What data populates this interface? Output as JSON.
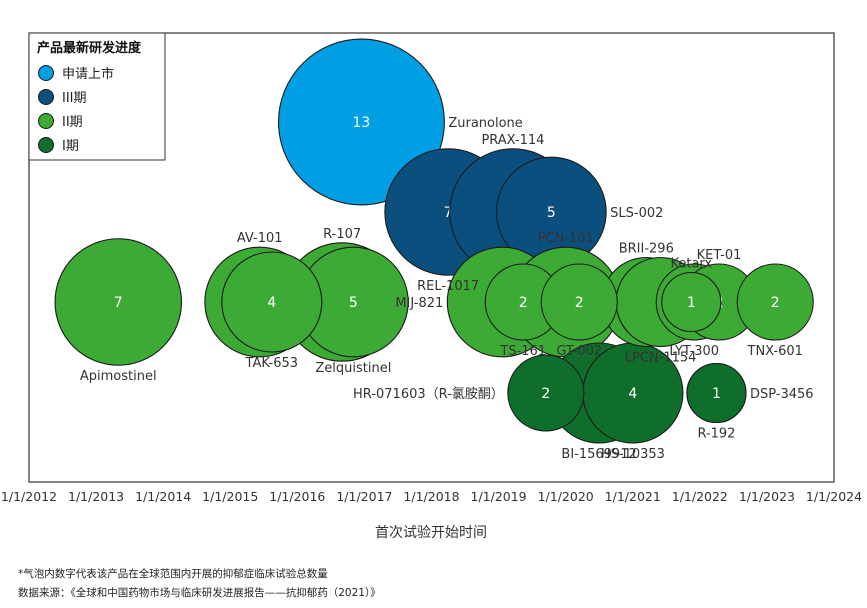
{
  "chart_data": {
    "type": "bubble",
    "title": "",
    "xlabel": "首次试验开始时间",
    "ylabel": "",
    "xlim": [
      "2012-01-01",
      "2024-01-01"
    ],
    "x_ticks": [
      "1/1/2012",
      "1/1/2013",
      "1/1/2014",
      "1/1/2015",
      "1/1/2016",
      "1/1/2017",
      "1/1/2018",
      "1/1/2019",
      "1/1/2020",
      "1/1/2021",
      "1/1/2022",
      "1/1/2023",
      "1/1/2024"
    ],
    "grid": false,
    "legend_title": "产品最新研发进度",
    "legend_position": "top-left",
    "phases": [
      {
        "key": "nda",
        "label": "申请上市",
        "color": "#009fe3"
      },
      {
        "key": "p3",
        "label": "III期",
        "color": "#0a4f7e"
      },
      {
        "key": "p2",
        "label": "II期",
        "color": "#3caa35"
      },
      {
        "key": "p1",
        "label": "I期",
        "color": "#0f6e2c"
      }
    ],
    "rows": 3,
    "bubbles": [
      {
        "name": "Zuranolone",
        "date": "2016-12-15",
        "row": 0,
        "count": 13,
        "phase": "nda",
        "label_pos": "right"
      },
      {
        "name": "REL-1017",
        "date": "2018-04-01",
        "row": 1,
        "count": 7,
        "phase": "p3",
        "label_pos": "bottom"
      },
      {
        "name": "PRAX-114",
        "date": "2019-03-20",
        "row": 1,
        "count": 7,
        "phase": "p3",
        "label_pos": "top"
      },
      {
        "name": "SLS-002",
        "date": "2019-10-15",
        "row": 1,
        "count": 5,
        "phase": "p3",
        "label_pos": "right"
      },
      {
        "name": "Apimostinel",
        "date": "2013-05-01",
        "row": 2,
        "count": 7,
        "phase": "p2",
        "label_pos": "bottom"
      },
      {
        "name": "AV-101",
        "date": "2015-06-10",
        "row": 2,
        "count": 5,
        "phase": "p2",
        "label_pos": "top"
      },
      {
        "name": "TAK-653",
        "date": "2015-08-15",
        "row": 2,
        "count": 4,
        "phase": "p2",
        "label_pos": "bottom"
      },
      {
        "name": "R-107",
        "date": "2016-09-01",
        "row": 2,
        "count": 6,
        "phase": "p2",
        "label_pos": "top"
      },
      {
        "name": "Zelquistinel",
        "date": "2016-11-01",
        "row": 2,
        "count": 5,
        "phase": "p2",
        "label_pos": "bottom"
      },
      {
        "name": "MIJ-821",
        "date": "2019-01-20",
        "row": 2,
        "count": 5,
        "phase": "p2",
        "label_pos": "left"
      },
      {
        "name": "TS-161",
        "date": "2019-05-15",
        "row": 2,
        "count": 2,
        "phase": "p2",
        "label_pos": "bottom"
      },
      {
        "name": "PCN-101",
        "date": "2020-01-01",
        "row": 2,
        "count": 5,
        "phase": "p2",
        "label_pos": "top"
      },
      {
        "name": "GT-002",
        "date": "2020-03-15",
        "row": 2,
        "count": 2,
        "phase": "p2",
        "label_pos": "bottom"
      },
      {
        "name": "BRII-296",
        "date": "2021-03-15",
        "row": 2,
        "count": 3,
        "phase": "p2",
        "label_pos": "top"
      },
      {
        "name": "LPCN-1154",
        "date": "2021-06-01",
        "row": 2,
        "count": 3,
        "phase": "p2",
        "label_pos": "bottom"
      },
      {
        "name": "Ketarx",
        "date": "2021-11-15",
        "row": 2,
        "count": 1,
        "phase": "p2",
        "label_pos": "top"
      },
      {
        "name": "LYT-300",
        "date": "2021-12-01",
        "row": 2,
        "count": 2,
        "phase": "p2",
        "label_pos": "bottom"
      },
      {
        "name": "KET-01",
        "date": "2022-04-15",
        "row": 2,
        "count": 2,
        "phase": "p2",
        "label_pos": "top"
      },
      {
        "name": "TNX-601",
        "date": "2023-02-15",
        "row": 2,
        "count": 2,
        "phase": "p2",
        "label_pos": "bottom"
      },
      {
        "name": "HR-071603（R-氯胺酮）",
        "date": "2019-09-15",
        "row": 3,
        "count": 2,
        "phase": "p1",
        "label_pos": "left"
      },
      {
        "name": "BI-1569912",
        "date": "2020-07-01",
        "row": 3,
        "count": 4,
        "phase": "p1",
        "label_pos": "bottom"
      },
      {
        "name": "HS-10353",
        "date": "2021-01-01",
        "row": 3,
        "count": 4,
        "phase": "p1",
        "label_pos": "bottom"
      },
      {
        "name": "DSP-3456",
        "date": "2022-04-01",
        "row": 3,
        "count": 1,
        "phase": "p1",
        "label_pos": "right"
      },
      {
        "name": "R-192",
        "date": "2022-04-01",
        "row": 3,
        "count": 1,
        "phase": "p1",
        "label_pos": "bottom"
      }
    ],
    "annotations": [
      "*气泡内数字代表该产品在全球范围内开展的抑郁症临床试验总数量",
      "数据来源：《全球和中国药物市场与临床研发进展报告——抗抑郁药（2021）》"
    ]
  }
}
